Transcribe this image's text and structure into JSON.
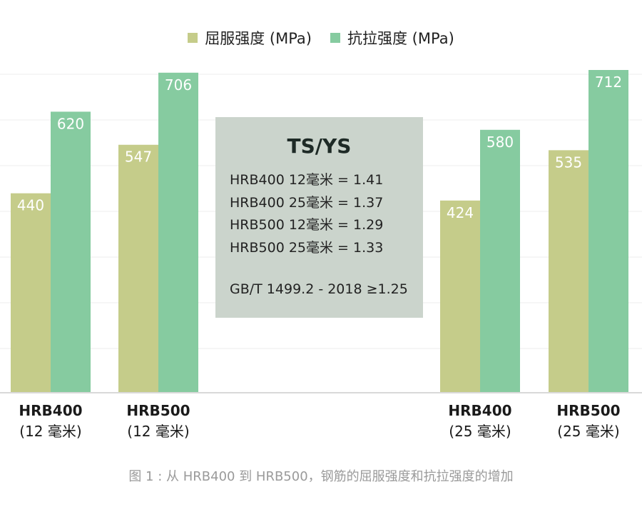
{
  "legend": {
    "items": [
      {
        "label": "屈服强度 (MPa)",
        "color": "#c5cc8a"
      },
      {
        "label": "抗拉强度 (MPa)",
        "color": "#86cba0"
      }
    ]
  },
  "chart_data": {
    "type": "bar",
    "categories": [
      {
        "line1": "HRB400",
        "line2": "(12 毫米)"
      },
      {
        "line1": "HRB500",
        "line2": "(12 毫米)"
      },
      {
        "line1": "HRB400",
        "line2": "(25 毫米)"
      },
      {
        "line1": "HRB500",
        "line2": "(25 毫米)"
      }
    ],
    "series": [
      {
        "name": "屈服强度 (MPa)",
        "values": [
          440,
          547,
          424,
          535
        ],
        "color": "#c5cc8a"
      },
      {
        "name": "抗拉强度 (MPa)",
        "values": [
          620,
          706,
          580,
          712
        ],
        "color": "#86cba0"
      }
    ],
    "ylim": [
      0,
      712
    ],
    "grid": true,
    "legend_position": "top-center"
  },
  "ratio_box": {
    "title": "TS/YS",
    "lines": [
      "HRB400 12毫米 = 1.41",
      "HRB400 25毫米 = 1.37",
      "HRB500 12毫米 = 1.29",
      "HRB500 25毫米 = 1.33"
    ],
    "standard": "GB/T 1499.2 - 2018 ≥1.25"
  },
  "caption": "图 1 : 从 HRB400 到 HRB500，钢筋的屈服强度和抗拉强度的增加"
}
